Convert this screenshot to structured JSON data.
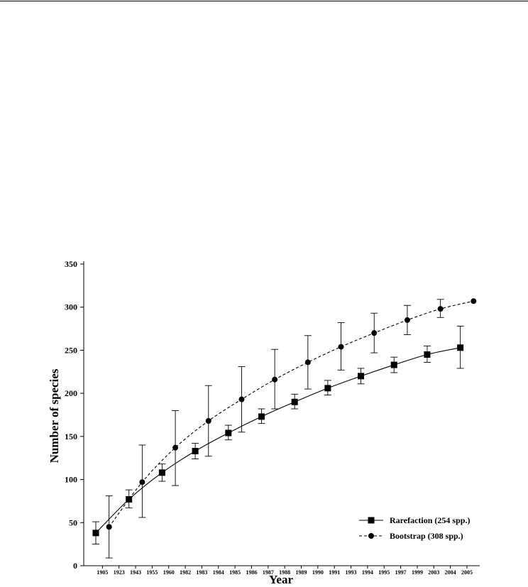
{
  "chart_data": {
    "type": "line",
    "title": "",
    "xlabel": "Year",
    "ylabel": "Number of species",
    "ylim": [
      0,
      350
    ],
    "yticks": [
      0,
      50,
      100,
      150,
      200,
      250,
      300,
      350
    ],
    "x_tick_labels": [
      "1905",
      "1923",
      "1943",
      "1955",
      "1960",
      "1982",
      "1983",
      "1984",
      "1985",
      "1986",
      "1987",
      "1988",
      "1989",
      "1990",
      "1991",
      "1993",
      "1994",
      "1995",
      "1997",
      "1999",
      "2003",
      "2004",
      "2005"
    ],
    "legend_position": "bottom-right",
    "series": [
      {
        "name": "Rarefaction (254 spp.)",
        "line_style": "solid",
        "marker": "square",
        "color": "#000000",
        "points": [
          {
            "pos": 0.3,
            "y": 38,
            "err_low": 25,
            "err_high": 51
          },
          {
            "pos": 2.3,
            "y": 77,
            "err_low": 67,
            "err_high": 88
          },
          {
            "pos": 4.3,
            "y": 108,
            "err_low": 98,
            "err_high": 118
          },
          {
            "pos": 6.3,
            "y": 133,
            "err_low": 124,
            "err_high": 142
          },
          {
            "pos": 8.3,
            "y": 154,
            "err_low": 146,
            "err_high": 163
          },
          {
            "pos": 10.3,
            "y": 173,
            "err_low": 165,
            "err_high": 182
          },
          {
            "pos": 12.3,
            "y": 190,
            "err_low": 182,
            "err_high": 199
          },
          {
            "pos": 14.3,
            "y": 206,
            "err_low": 198,
            "err_high": 215
          },
          {
            "pos": 16.3,
            "y": 220,
            "err_low": 211,
            "err_high": 229
          },
          {
            "pos": 18.3,
            "y": 233,
            "err_low": 224,
            "err_high": 242
          },
          {
            "pos": 20.3,
            "y": 245,
            "err_low": 236,
            "err_high": 255
          },
          {
            "pos": 22.3,
            "y": 253,
            "err_low": 229,
            "err_high": 278
          }
        ]
      },
      {
        "name": "Bootstrap (308 spp.)",
        "line_style": "dashed",
        "marker": "circle",
        "color": "#000000",
        "points": [
          {
            "pos": 1.1,
            "y": 45,
            "err_low": 9,
            "err_high": 81
          },
          {
            "pos": 3.1,
            "y": 97,
            "err_low": 56,
            "err_high": 140
          },
          {
            "pos": 5.1,
            "y": 137,
            "err_low": 93,
            "err_high": 180
          },
          {
            "pos": 7.1,
            "y": 168,
            "err_low": 127,
            "err_high": 209
          },
          {
            "pos": 9.1,
            "y": 193,
            "err_low": 155,
            "err_high": 231
          },
          {
            "pos": 11.1,
            "y": 216,
            "err_low": 182,
            "err_high": 251
          },
          {
            "pos": 13.1,
            "y": 236,
            "err_low": 205,
            "err_high": 267
          },
          {
            "pos": 15.1,
            "y": 254,
            "err_low": 227,
            "err_high": 282
          },
          {
            "pos": 17.1,
            "y": 270,
            "err_low": 247,
            "err_high": 293
          },
          {
            "pos": 19.1,
            "y": 285,
            "err_low": 268,
            "err_high": 302
          },
          {
            "pos": 21.1,
            "y": 298,
            "err_low": 288,
            "err_high": 309
          },
          {
            "pos": 23.1,
            "y": 307
          }
        ]
      }
    ]
  }
}
